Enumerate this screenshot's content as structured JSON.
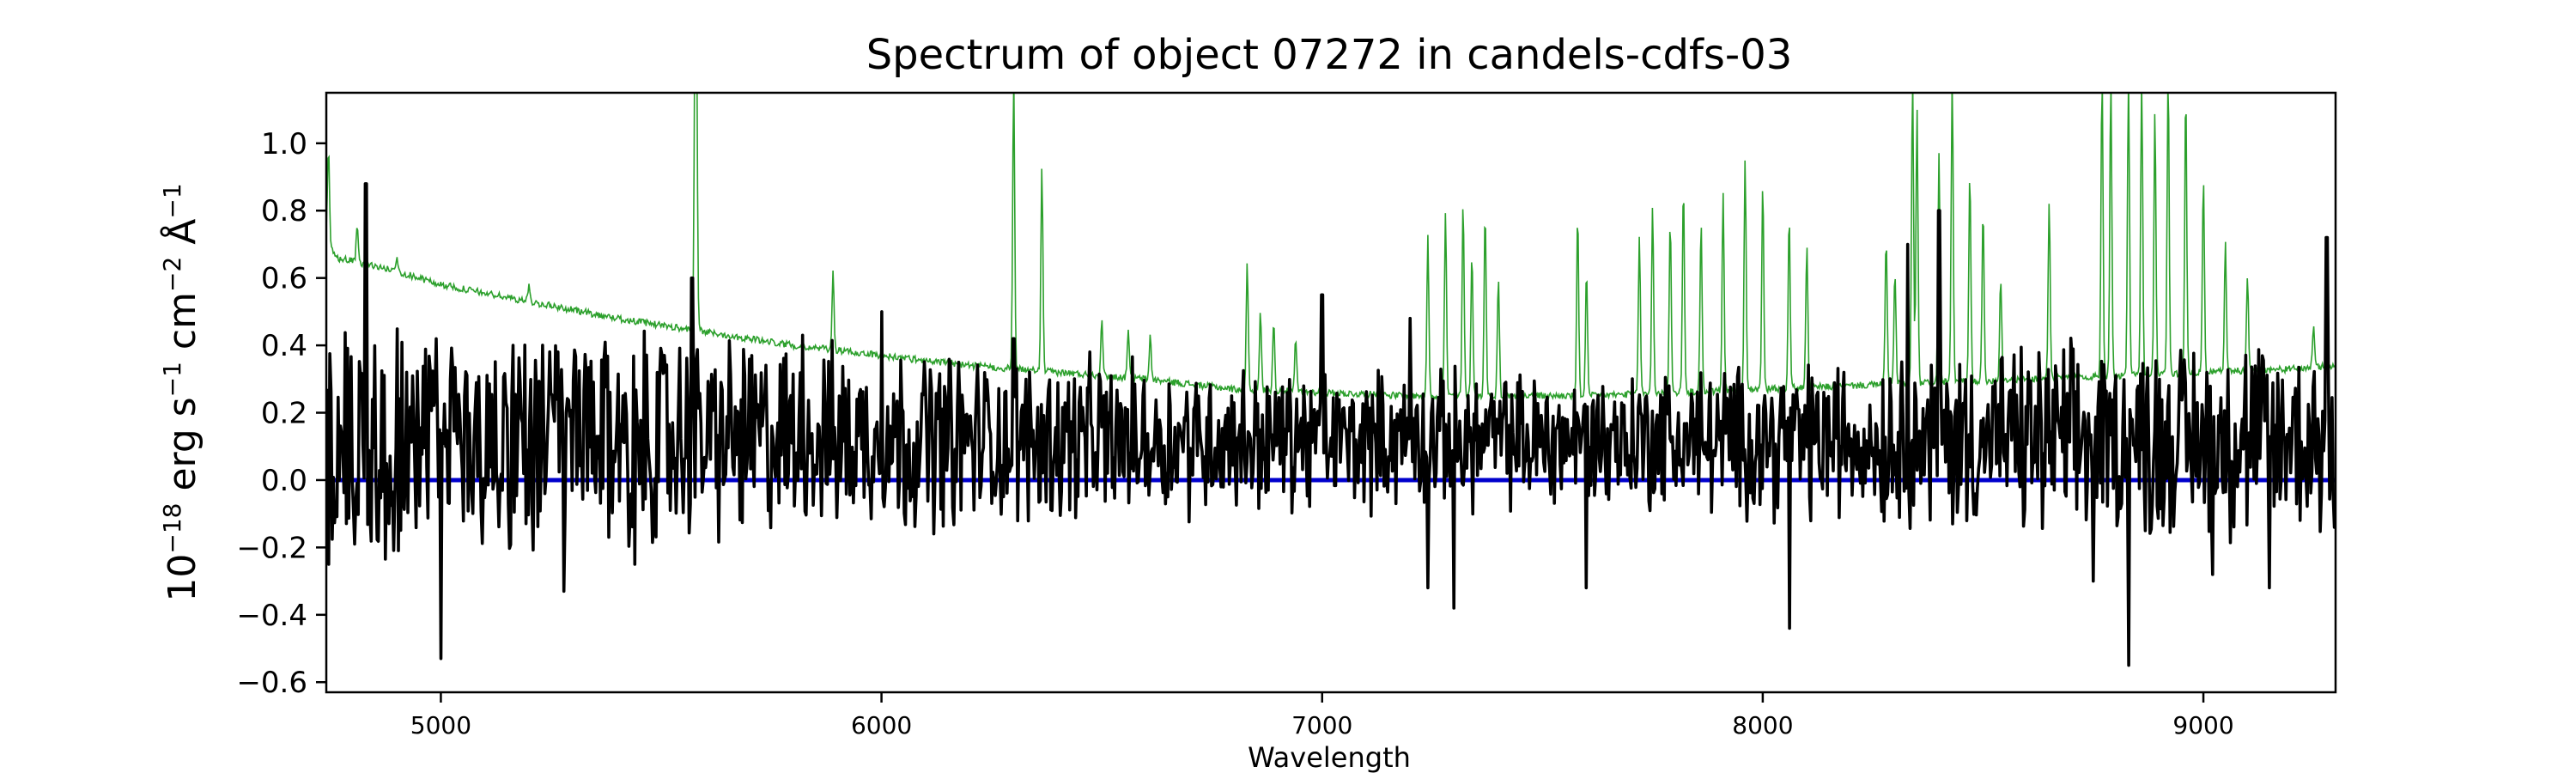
{
  "chart_data": {
    "type": "line",
    "title": "Spectrum of object 07272 in candels-cdfs-03",
    "xlabel": "Wavelength",
    "ylabel_parts": {
      "base1": "10",
      "exp1": "−18",
      "unit1": " erg s",
      "exp2": "−1",
      "unit2": " cm",
      "exp3": "−2",
      "unit3": " Å",
      "exp4": "−1"
    },
    "xlim": [
      4740,
      9300
    ],
    "ylim": [
      -0.63,
      1.15
    ],
    "xticks": [
      5000,
      6000,
      7000,
      8000,
      9000
    ],
    "xtick_labels": [
      "5000",
      "6000",
      "7000",
      "8000",
      "9000"
    ],
    "yticks": [
      -0.6,
      -0.4,
      -0.2,
      0.0,
      0.2,
      0.4,
      0.6,
      0.8,
      1.0
    ],
    "ytick_labels": [
      "−0.6",
      "−0.4",
      "−0.2",
      "0.0",
      "0.2",
      "0.4",
      "0.6",
      "0.8",
      "1.0"
    ],
    "grid": false,
    "legend": "none",
    "series": [
      {
        "role": "error-spectrum",
        "color": "#2ca02c",
        "baseline": [
          [
            4740,
            0.72
          ],
          [
            4760,
            0.66
          ],
          [
            4800,
            0.65
          ],
          [
            4900,
            0.62
          ],
          [
            5000,
            0.58
          ],
          [
            5200,
            0.53
          ],
          [
            5400,
            0.48
          ],
          [
            5600,
            0.44
          ],
          [
            5800,
            0.4
          ],
          [
            6000,
            0.37
          ],
          [
            6200,
            0.34
          ],
          [
            6400,
            0.32
          ],
          [
            6600,
            0.3
          ],
          [
            6800,
            0.27
          ],
          [
            7000,
            0.26
          ],
          [
            7200,
            0.25
          ],
          [
            7400,
            0.25
          ],
          [
            7600,
            0.25
          ],
          [
            7800,
            0.26
          ],
          [
            8000,
            0.27
          ],
          [
            8200,
            0.28
          ],
          [
            8400,
            0.29
          ],
          [
            8600,
            0.3
          ],
          [
            8800,
            0.31
          ],
          [
            9000,
            0.32
          ],
          [
            9200,
            0.33
          ],
          [
            9300,
            0.34
          ]
        ],
        "peaks": [
          [
            4745,
            0.98
          ],
          [
            4810,
            0.75
          ],
          [
            4900,
            0.66
          ],
          [
            5200,
            0.58
          ],
          [
            5577,
            1.2
          ],
          [
            5580,
            1.2
          ],
          [
            5890,
            0.62
          ],
          [
            6300,
            1.2
          ],
          [
            6364,
            0.92
          ],
          [
            6500,
            0.48
          ],
          [
            6560,
            0.45
          ],
          [
            6610,
            0.43
          ],
          [
            6830,
            0.65
          ],
          [
            6860,
            0.5
          ],
          [
            6890,
            0.47
          ],
          [
            6940,
            0.42
          ],
          [
            7240,
            0.72
          ],
          [
            7280,
            0.8
          ],
          [
            7320,
            0.82
          ],
          [
            7340,
            0.68
          ],
          [
            7370,
            0.8
          ],
          [
            7400,
            0.6
          ],
          [
            7580,
            0.78
          ],
          [
            7600,
            0.62
          ],
          [
            7720,
            0.72
          ],
          [
            7750,
            0.82
          ],
          [
            7790,
            0.77
          ],
          [
            7820,
            0.88
          ],
          [
            7860,
            0.76
          ],
          [
            7910,
            0.86
          ],
          [
            7960,
            0.95
          ],
          [
            8000,
            0.88
          ],
          [
            8060,
            0.78
          ],
          [
            8100,
            0.7
          ],
          [
            8280,
            0.72
          ],
          [
            8300,
            0.62
          ],
          [
            8340,
            1.2
          ],
          [
            8350,
            1.1
          ],
          [
            8400,
            0.98
          ],
          [
            8430,
            1.2
          ],
          [
            8470,
            0.92
          ],
          [
            8500,
            0.8
          ],
          [
            8540,
            0.6
          ],
          [
            8650,
            0.83
          ],
          [
            8770,
            1.2
          ],
          [
            8790,
            1.2
          ],
          [
            8830,
            1.2
          ],
          [
            8860,
            1.2
          ],
          [
            8890,
            1.1
          ],
          [
            8920,
            1.2
          ],
          [
            8960,
            1.15
          ],
          [
            9000,
            0.9
          ],
          [
            9050,
            0.7
          ],
          [
            9100,
            0.6
          ],
          [
            9250,
            0.45
          ]
        ]
      },
      {
        "role": "flux",
        "color": "#000000",
        "envelope": [
          [
            4740,
            0.3
          ],
          [
            5000,
            0.25
          ],
          [
            5500,
            0.22
          ],
          [
            6000,
            0.18
          ],
          [
            6500,
            0.15
          ],
          [
            7000,
            0.12
          ],
          [
            7500,
            0.12
          ],
          [
            8000,
            0.14
          ],
          [
            8500,
            0.18
          ],
          [
            9000,
            0.2
          ],
          [
            9300,
            0.22
          ]
        ],
        "spikes": [
          [
            4745,
            -0.25
          ],
          [
            4830,
            0.88
          ],
          [
            5000,
            -0.53
          ],
          [
            5280,
            -0.33
          ],
          [
            5440,
            -0.25
          ],
          [
            5570,
            0.6
          ],
          [
            5820,
            0.43
          ],
          [
            6000,
            0.5
          ],
          [
            6300,
            0.42
          ],
          [
            7000,
            0.55
          ],
          [
            7200,
            0.48
          ],
          [
            7240,
            -0.32
          ],
          [
            7300,
            -0.38
          ],
          [
            7600,
            -0.32
          ],
          [
            8060,
            -0.44
          ],
          [
            8330,
            0.7
          ],
          [
            8400,
            0.8
          ],
          [
            8750,
            -0.3
          ],
          [
            8830,
            -0.55
          ],
          [
            9020,
            -0.28
          ],
          [
            9150,
            -0.32
          ],
          [
            9280,
            0.72
          ]
        ]
      },
      {
        "role": "zero-line",
        "color": "#0000cc",
        "values": [
          [
            4740,
            0.0
          ],
          [
            9300,
            0.0
          ]
        ]
      }
    ]
  }
}
